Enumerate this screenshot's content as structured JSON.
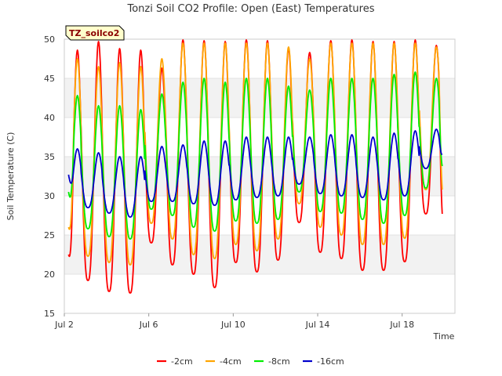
{
  "chart_data": {
    "type": "line",
    "title": "Tonzi Soil CO2 Profile: Open (East) Temperatures",
    "xlabel": "Time",
    "ylabel": "Soil Temperature (C)",
    "ylim": [
      15,
      50
    ],
    "xlim_days": [
      2,
      20.5
    ],
    "yticks": [
      15,
      20,
      25,
      30,
      35,
      40,
      45,
      50
    ],
    "xticks": [
      {
        "day": 2,
        "label": "Jul 2"
      },
      {
        "day": 6,
        "label": "Jul 6"
      },
      {
        "day": 10,
        "label": "Jul 10"
      },
      {
        "day": 14,
        "label": "Jul 14"
      },
      {
        "day": 18,
        "label": "Jul 18"
      }
    ],
    "grid": "horizontal bands",
    "legend_position": "bottom",
    "badge": "TZ_soilco2",
    "x_start_day": 2.2,
    "x_end_day": 19.9,
    "series": [
      {
        "name": "-2cm",
        "color": "#ff0000",
        "daily_min": [
          19.3,
          19.2,
          17.8,
          17.6,
          24.0,
          21.2,
          20.0,
          18.3,
          21.5,
          20.3,
          21.8,
          26.6,
          22.8,
          22.0,
          20.5,
          20.5,
          21.6,
          27.7
        ],
        "daily_max": [
          48.6,
          49.7,
          48.8,
          48.6,
          46.3,
          49.9,
          49.8,
          49.7,
          49.9,
          49.8,
          48.8,
          48.3,
          49.8,
          49.9,
          49.7,
          49.7,
          49.9,
          49.2
        ],
        "first_value": 22.5,
        "last_value": 27.7
      },
      {
        "name": "-4cm",
        "color": "#ffa500",
        "daily_min": [
          22.8,
          22.3,
          21.5,
          21.2,
          26.5,
          24.5,
          22.5,
          22.0,
          23.8,
          23.0,
          24.5,
          29.0,
          26.0,
          25.0,
          23.8,
          23.8,
          24.6,
          30.8
        ],
        "daily_max": [
          47.5,
          46.5,
          47.0,
          46.5,
          47.5,
          49.5,
          49.5,
          49.5,
          49.5,
          49.5,
          49.0,
          47.5,
          49.5,
          49.5,
          49.5,
          49.5,
          49.5,
          49.0
        ],
        "first_value": 26.0,
        "last_value": 30.8
      },
      {
        "name": "-8cm",
        "color": "#00ee00",
        "daily_min": [
          26.3,
          25.8,
          24.8,
          24.5,
          28.3,
          27.5,
          26.0,
          25.5,
          26.8,
          26.5,
          27.0,
          30.5,
          28.0,
          27.8,
          27.0,
          26.5,
          27.5,
          31.0
        ],
        "daily_max": [
          42.8,
          41.5,
          41.5,
          41.0,
          43.0,
          44.5,
          45.0,
          44.5,
          45.0,
          45.0,
          44.0,
          43.5,
          45.0,
          45.0,
          45.0,
          45.5,
          45.8,
          45.0
        ],
        "first_value": 30.5,
        "last_value": 33.8
      },
      {
        "name": "-16cm",
        "color": "#0000cc",
        "daily_min": [
          28.8,
          28.5,
          27.8,
          27.3,
          29.3,
          29.3,
          29.0,
          28.8,
          29.5,
          29.8,
          30.0,
          31.5,
          30.3,
          30.0,
          29.8,
          29.5,
          30.0,
          33.5
        ],
        "daily_max": [
          36.0,
          35.5,
          35.0,
          35.0,
          36.3,
          36.5,
          37.0,
          37.0,
          37.5,
          37.5,
          37.5,
          37.5,
          37.8,
          37.8,
          37.5,
          38.0,
          38.3,
          38.5
        ],
        "first_value": 32.7,
        "last_value": 35.3
      }
    ]
  }
}
